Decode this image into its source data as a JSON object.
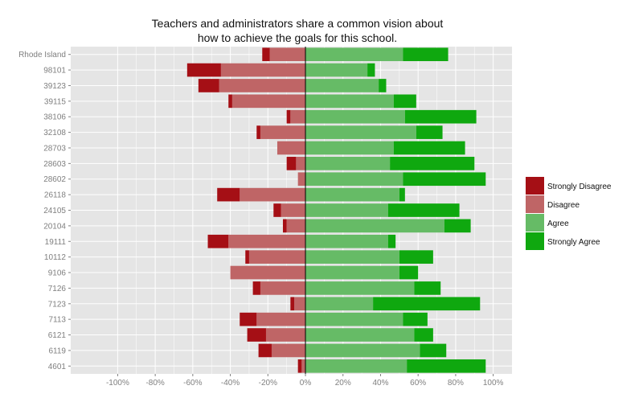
{
  "chart_data": {
    "type": "bar",
    "orientation": "horizontal",
    "stacking": "diverging",
    "title_lines": [
      "Teachers and administrators share a common vision about",
      "how to achieve the goals for this school."
    ],
    "xlabel": "",
    "ylabel": "",
    "xlim": [
      -125,
      110
    ],
    "x_ticks": [
      -100,
      -80,
      -60,
      -40,
      -20,
      0,
      20,
      40,
      60,
      80,
      100
    ],
    "x_tick_labels": [
      "-100%",
      "-80%",
      "-60%",
      "-40%",
      "-20%",
      "0%",
      "20%",
      "40%",
      "60%",
      "80%",
      "100%"
    ],
    "grid": true,
    "legend_position": "right",
    "categories": [
      "Rhode Island",
      "98101",
      "39123",
      "39115",
      "38106",
      "32108",
      "28703",
      "28603",
      "28602",
      "26118",
      "24105",
      "20104",
      "19111",
      "10112",
      "9106",
      "7126",
      "7123",
      "7113",
      "6121",
      "6119",
      "4601"
    ],
    "series": [
      {
        "name": "Strongly Disagree",
        "color": "#a50f15",
        "values": [
          4,
          18,
          11,
          2,
          2,
          2,
          0,
          5,
          0,
          12,
          4,
          2,
          11,
          2,
          0,
          4,
          2,
          9,
          10,
          7,
          2
        ]
      },
      {
        "name": "Disagree",
        "color": "#bf6566",
        "values": [
          19,
          45,
          46,
          39,
          8,
          24,
          15,
          5,
          4,
          35,
          13,
          10,
          41,
          30,
          40,
          24,
          6,
          26,
          21,
          18,
          2
        ]
      },
      {
        "name": "Agree",
        "color": "#66bb66",
        "values": [
          52,
          33,
          39,
          47,
          53,
          59,
          47,
          45,
          52,
          50,
          44,
          74,
          44,
          50,
          50,
          58,
          36,
          52,
          58,
          61,
          54
        ]
      },
      {
        "name": "Strongly Agree",
        "color": "#0fa80f",
        "values": [
          24,
          4,
          4,
          12,
          38,
          14,
          38,
          45,
          44,
          3,
          38,
          14,
          4,
          18,
          10,
          14,
          57,
          13,
          10,
          14,
          42
        ]
      }
    ]
  },
  "colors": {
    "panel_background": "#e5e5e5",
    "gridline": "#ffffff",
    "zero_line": "#000000"
  }
}
